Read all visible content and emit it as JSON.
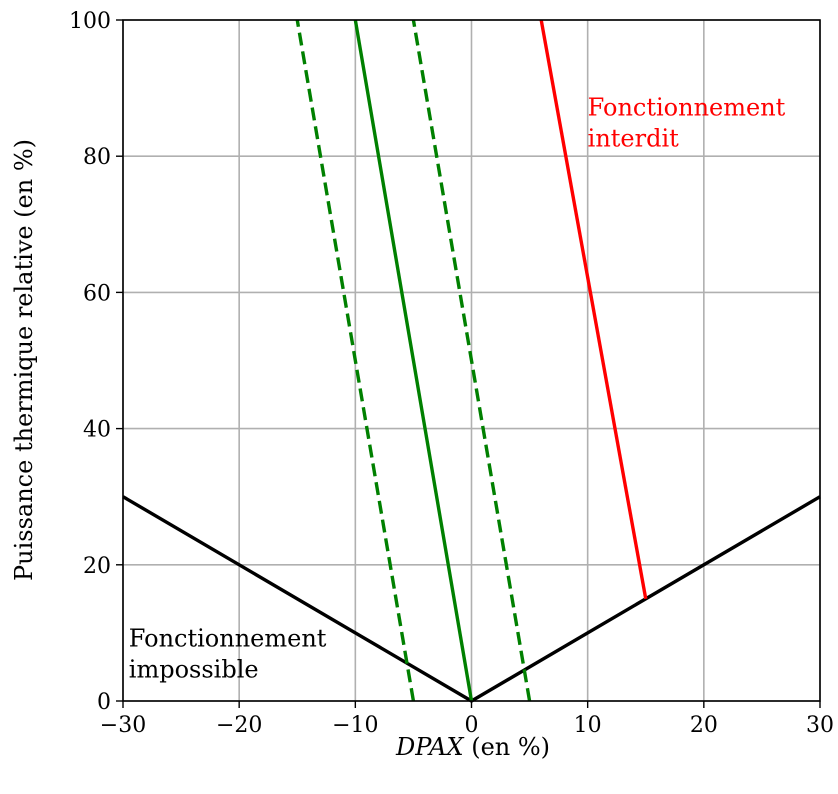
{
  "chart_data": {
    "type": "line",
    "title": "",
    "xlabel_var": "DPAX",
    "xlabel_unit": " (en %)",
    "ylabel": "Puissance thermique relative (en %)",
    "xlim": [
      -30,
      30
    ],
    "ylim": [
      0,
      100
    ],
    "x_ticks": [
      -30,
      -20,
      -10,
      0,
      10,
      20,
      30
    ],
    "x_tick_labels": [
      "−30",
      "−20",
      "−10",
      "0",
      "10",
      "20",
      "30"
    ],
    "y_ticks": [
      0,
      20,
      40,
      60,
      80,
      100
    ],
    "y_tick_labels": [
      "0",
      "20",
      "40",
      "60",
      "80",
      "100"
    ],
    "grid": true,
    "colors": {
      "black": "#000000",
      "green": "#008000",
      "red": "#ff0000",
      "grid": "#b0b0b0"
    },
    "series": [
      {
        "style": "solid",
        "color": "#000000",
        "x": [
          -30,
          0,
          30
        ],
        "y": [
          30,
          0,
          30
        ]
      },
      {
        "style": "solid",
        "color": "#008000",
        "x": [
          0,
          -10
        ],
        "y": [
          0,
          100
        ]
      },
      {
        "style": "dashed",
        "color": "#008000",
        "x": [
          -5,
          -15
        ],
        "y": [
          0,
          100
        ]
      },
      {
        "style": "dashed",
        "color": "#008000",
        "x": [
          5,
          -5
        ],
        "y": [
          0,
          100
        ]
      },
      {
        "style": "solid",
        "color": "#ff0000",
        "x": [
          15,
          6
        ],
        "y": [
          15,
          100
        ]
      }
    ],
    "annotations": [
      {
        "lines": [
          "Fonctionnement",
          "interdit"
        ],
        "color": "#ff0000",
        "x": 10,
        "y": 86
      },
      {
        "lines": [
          "Fonctionnement",
          "impossible"
        ],
        "color": "#000000",
        "x": -29.5,
        "y": 8
      }
    ]
  }
}
